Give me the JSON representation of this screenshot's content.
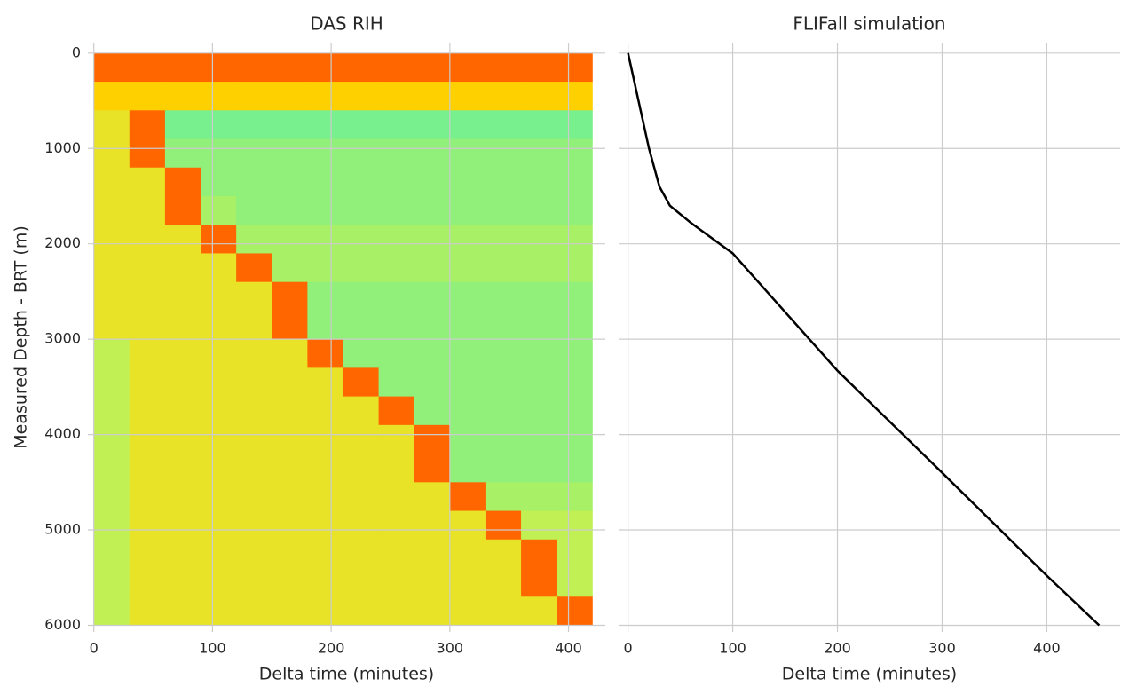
{
  "chart_data": [
    {
      "type": "heatmap",
      "title": "DAS RIH",
      "x_label": "Delta time (minutes)",
      "y_label": "Measured Depth - BRT (m)",
      "xbins": [
        0,
        30,
        60,
        90,
        120,
        150,
        180,
        210,
        240,
        270,
        300,
        330,
        360,
        390,
        420
      ],
      "ybins": [
        0,
        300,
        600,
        900,
        1200,
        1500,
        1800,
        2100,
        2400,
        2700,
        3000,
        3300,
        3600,
        3900,
        4200,
        4500,
        4800,
        5100,
        5400,
        5700,
        6000
      ],
      "vlim": [
        0,
        1
      ],
      "colormap": [
        "#30e8d0",
        "#60f0a0",
        "#d8f040",
        "#ffd000",
        "#ff2000"
      ],
      "values": [
        [
          0.9,
          0.9,
          0.9,
          0.9,
          0.9,
          0.9,
          0.9,
          0.9,
          0.9,
          0.9,
          0.9,
          0.9,
          0.9,
          0.9
        ],
        [
          0.75,
          0.75,
          0.75,
          0.75,
          0.75,
          0.75,
          0.75,
          0.75,
          0.75,
          0.75,
          0.75,
          0.75,
          0.75,
          0.75
        ],
        [
          0.6,
          0.9,
          0.3,
          0.3,
          0.3,
          0.3,
          0.3,
          0.3,
          0.3,
          0.3,
          0.3,
          0.3,
          0.3,
          0.3
        ],
        [
          0.6,
          0.9,
          0.35,
          0.35,
          0.35,
          0.35,
          0.35,
          0.35,
          0.35,
          0.35,
          0.35,
          0.35,
          0.35,
          0.35
        ],
        [
          0.6,
          0.6,
          0.9,
          0.35,
          0.35,
          0.35,
          0.35,
          0.35,
          0.35,
          0.35,
          0.35,
          0.35,
          0.35,
          0.35
        ],
        [
          0.6,
          0.6,
          0.9,
          0.4,
          0.35,
          0.35,
          0.35,
          0.35,
          0.35,
          0.35,
          0.35,
          0.35,
          0.35,
          0.35
        ],
        [
          0.6,
          0.6,
          0.6,
          0.9,
          0.4,
          0.4,
          0.4,
          0.4,
          0.4,
          0.4,
          0.4,
          0.4,
          0.4,
          0.4
        ],
        [
          0.6,
          0.6,
          0.6,
          0.6,
          0.9,
          0.4,
          0.4,
          0.4,
          0.4,
          0.4,
          0.4,
          0.4,
          0.4,
          0.4
        ],
        [
          0.6,
          0.6,
          0.6,
          0.6,
          0.6,
          0.9,
          0.35,
          0.35,
          0.35,
          0.35,
          0.35,
          0.35,
          0.35,
          0.35
        ],
        [
          0.6,
          0.6,
          0.6,
          0.6,
          0.6,
          0.9,
          0.35,
          0.35,
          0.35,
          0.35,
          0.35,
          0.35,
          0.35,
          0.35
        ],
        [
          0.45,
          0.6,
          0.6,
          0.6,
          0.6,
          0.6,
          0.9,
          0.35,
          0.35,
          0.35,
          0.35,
          0.35,
          0.35,
          0.35
        ],
        [
          0.45,
          0.6,
          0.6,
          0.6,
          0.6,
          0.6,
          0.6,
          0.9,
          0.35,
          0.35,
          0.35,
          0.35,
          0.35,
          0.35
        ],
        [
          0.45,
          0.6,
          0.6,
          0.6,
          0.6,
          0.6,
          0.6,
          0.6,
          0.9,
          0.35,
          0.35,
          0.35,
          0.35,
          0.35
        ],
        [
          0.45,
          0.6,
          0.6,
          0.6,
          0.6,
          0.6,
          0.6,
          0.6,
          0.6,
          0.9,
          0.35,
          0.35,
          0.35,
          0.35
        ],
        [
          0.45,
          0.6,
          0.6,
          0.6,
          0.6,
          0.6,
          0.6,
          0.6,
          0.6,
          0.9,
          0.35,
          0.35,
          0.35,
          0.35
        ],
        [
          0.45,
          0.6,
          0.6,
          0.6,
          0.6,
          0.6,
          0.6,
          0.6,
          0.6,
          0.6,
          0.9,
          0.4,
          0.4,
          0.4
        ],
        [
          0.45,
          0.6,
          0.6,
          0.6,
          0.6,
          0.6,
          0.6,
          0.6,
          0.6,
          0.6,
          0.6,
          0.9,
          0.45,
          0.45
        ],
        [
          0.45,
          0.6,
          0.6,
          0.6,
          0.6,
          0.6,
          0.6,
          0.6,
          0.6,
          0.6,
          0.6,
          0.6,
          0.9,
          0.45
        ],
        [
          0.45,
          0.6,
          0.6,
          0.6,
          0.6,
          0.6,
          0.6,
          0.6,
          0.6,
          0.6,
          0.6,
          0.6,
          0.9,
          0.45
        ],
        [
          0.45,
          0.6,
          0.6,
          0.6,
          0.6,
          0.6,
          0.6,
          0.6,
          0.6,
          0.6,
          0.6,
          0.6,
          0.6,
          0.9
        ]
      ],
      "xlim": [
        -5,
        431
      ],
      "ylim": [
        6070,
        -110
      ],
      "xticks": [
        0,
        100,
        200,
        300,
        400
      ],
      "yticks": [
        0,
        1000,
        2000,
        3000,
        4000,
        5000,
        6000
      ],
      "ytick_labels": true,
      "grid": true,
      "grid_color": "#cccccc"
    },
    {
      "type": "line",
      "title": "FLIFall simulation",
      "x_label": "Delta time (minutes)",
      "x": [
        0,
        10,
        20,
        30,
        40,
        60,
        100,
        200,
        300,
        400,
        450
      ],
      "values": [
        0,
        500,
        1000,
        1400,
        1600,
        1780,
        2100,
        3330,
        4400,
        5480,
        6000
      ],
      "color": "#000000",
      "xlim": [
        -9,
        470
      ],
      "ylim": [
        6070,
        -110
      ],
      "xticks": [
        0,
        100,
        200,
        300,
        400
      ],
      "yticks": [
        0,
        1000,
        2000,
        3000,
        4000,
        5000,
        6000
      ],
      "ytick_labels": false,
      "grid": true,
      "grid_color": "#cccccc"
    }
  ]
}
